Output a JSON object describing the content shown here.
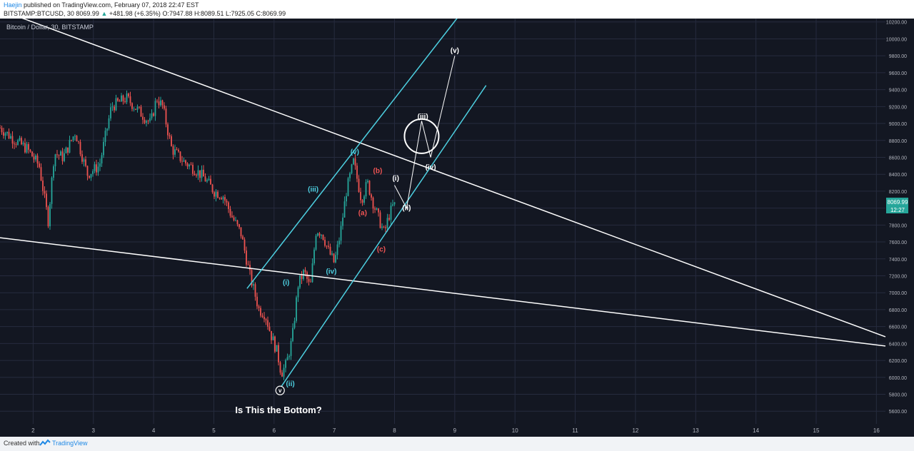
{
  "header": {
    "author": "Haejin",
    "published_text": "published on TradingView.com, February 07, 2018 22:47 EST",
    "symbol": "BITSTAMP:BTCUSD, 30",
    "last": "8069.99",
    "change": "+481.98 (+6.35%)",
    "ohlc": "O:7947.88 H:8089.51 L:7925.05 C:8069.99"
  },
  "footer": {
    "created_with": "Created with",
    "brand": "TradingView"
  },
  "colors": {
    "background": "#131722",
    "grid": "#262b3e",
    "up": "#26a69a",
    "down": "#ef5350",
    "cyan": "#4dd0e1",
    "red_label": "#f05454",
    "white": "#ffffff"
  },
  "chart_data": {
    "type": "candlestick",
    "title": "Bitcoin / Dollar, 30, BITSTAMP",
    "annotation": "Is This the Bottom?",
    "price_label": "8069.99",
    "price_label_2": "12:27",
    "x_ticks": [
      "2",
      "3",
      "4",
      "5",
      "6",
      "7",
      "8",
      "9",
      "10",
      "11",
      "12",
      "13",
      "14",
      "15",
      "16"
    ],
    "y_ticks": [
      "5600.00",
      "5800.00",
      "6000.00",
      "6200.00",
      "6400.00",
      "6600.00",
      "6800.00",
      "7000.00",
      "7200.00",
      "7400.00",
      "7600.00",
      "7800.00",
      "8000.00",
      "8200.00",
      "8400.00",
      "8600.00",
      "8800.00",
      "9000.00",
      "9200.00",
      "9400.00",
      "9600.00",
      "9800.00",
      "10000.00",
      "10200.00"
    ],
    "ylim": [
      5450,
      10240
    ],
    "xlim": [
      1.45,
      16.15
    ],
    "price_path": [
      [
        1.45,
        8950
      ],
      [
        1.7,
        8800
      ],
      [
        1.9,
        8700
      ],
      [
        2.1,
        8500
      ],
      [
        2.25,
        7850
      ],
      [
        2.35,
        8650
      ],
      [
        2.5,
        8600
      ],
      [
        2.7,
        8900
      ],
      [
        2.9,
        8400
      ],
      [
        3.1,
        8500
      ],
      [
        3.3,
        9200
      ],
      [
        3.55,
        9300
      ],
      [
        3.75,
        9150
      ],
      [
        3.95,
        9000
      ],
      [
        4.05,
        9300
      ],
      [
        4.15,
        9200
      ],
      [
        4.3,
        8700
      ],
      [
        4.5,
        8550
      ],
      [
        4.7,
        8450
      ],
      [
        4.85,
        8350
      ],
      [
        5.0,
        8200
      ],
      [
        5.15,
        8150
      ],
      [
        5.3,
        7900
      ],
      [
        5.45,
        7700
      ],
      [
        5.6,
        7200
      ],
      [
        5.75,
        6800
      ],
      [
        5.85,
        6750
      ],
      [
        5.95,
        6500
      ],
      [
        6.05,
        6300
      ],
      [
        6.12,
        6050
      ],
      [
        6.2,
        6150
      ],
      [
        6.3,
        6450
      ],
      [
        6.4,
        7100
      ],
      [
        6.5,
        7250
      ],
      [
        6.6,
        7050
      ],
      [
        6.7,
        7750
      ],
      [
        6.8,
        7700
      ],
      [
        6.9,
        7500
      ],
      [
        7.0,
        7350
      ],
      [
        7.1,
        7700
      ],
      [
        7.2,
        8200
      ],
      [
        7.32,
        8550
      ],
      [
        7.45,
        8100
      ],
      [
        7.55,
        8300
      ],
      [
        7.65,
        8050
      ],
      [
        7.75,
        7850
      ],
      [
        7.83,
        7700
      ],
      [
        7.9,
        7900
      ],
      [
        8.0,
        8069.99
      ]
    ],
    "lines": [
      {
        "name": "upper-trendline",
        "color": "white",
        "points": [
          [
            1.8,
            10250
          ],
          [
            16.15,
            6480
          ]
        ]
      },
      {
        "name": "lower-trendline",
        "color": "white",
        "points": [
          [
            1.45,
            7650
          ],
          [
            16.15,
            6370
          ]
        ]
      },
      {
        "name": "channel-upper",
        "color": "cyan",
        "points": [
          [
            5.55,
            7050
          ],
          [
            9.1,
            10300
          ]
        ]
      },
      {
        "name": "channel-lower",
        "color": "cyan",
        "points": [
          [
            6.1,
            5870
          ],
          [
            9.52,
            9450
          ]
        ]
      },
      {
        "name": "projection",
        "color": "white",
        "points": [
          [
            8.0,
            8270
          ],
          [
            8.2,
            8000
          ],
          [
            8.45,
            9030
          ],
          [
            8.6,
            8600
          ],
          [
            9.0,
            9800
          ]
        ]
      }
    ],
    "labels": [
      {
        "text": "(i)",
        "x": 6.2,
        "y": 7130,
        "color": "cyan"
      },
      {
        "text": "(ii)",
        "x": 6.27,
        "y": 5930,
        "color": "cyan"
      },
      {
        "text": "(iii)",
        "x": 6.65,
        "y": 8230,
        "color": "cyan"
      },
      {
        "text": "(iv)",
        "x": 6.95,
        "y": 7260,
        "color": "cyan"
      },
      {
        "text": "(v)",
        "x": 7.34,
        "y": 8670,
        "color": "cyan"
      },
      {
        "text": "(a)",
        "x": 7.47,
        "y": 7950,
        "color": "red"
      },
      {
        "text": "(b)",
        "x": 7.72,
        "y": 8450,
        "color": "red"
      },
      {
        "text": "(c)",
        "x": 7.78,
        "y": 7520,
        "color": "red"
      },
      {
        "text": "(i)",
        "x": 8.02,
        "y": 8360,
        "color": "white"
      },
      {
        "text": "(ii)",
        "x": 8.2,
        "y": 8010,
        "color": "white"
      },
      {
        "text": "(iii)",
        "x": 8.47,
        "y": 9090,
        "color": "white"
      },
      {
        "text": "(iv)",
        "x": 8.6,
        "y": 8490,
        "color": "white"
      },
      {
        "text": "(v)",
        "x": 9.0,
        "y": 9870,
        "color": "white"
      }
    ],
    "circle_marker": {
      "x": 8.45,
      "y": 8850
    },
    "bottom_marker": {
      "text": "v",
      "x": 6.1,
      "y": 5845
    }
  }
}
